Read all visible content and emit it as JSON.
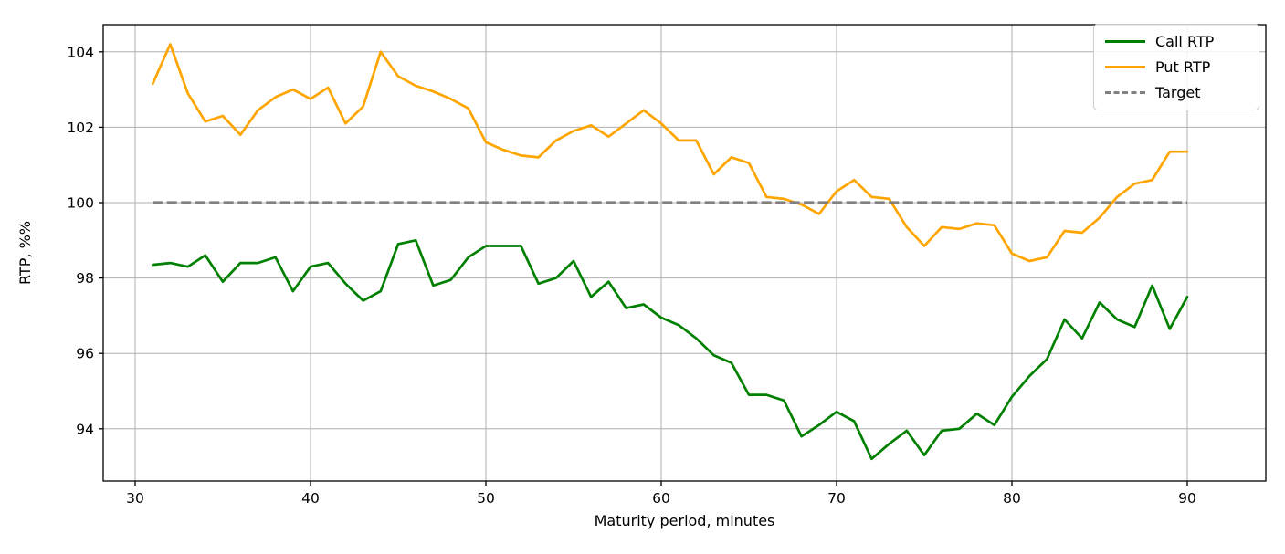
{
  "chart_data": {
    "type": "line",
    "title": "",
    "xlabel": "Maturity period, minutes",
    "ylabel": "RTP, %%",
    "x_ticks": [
      30,
      40,
      50,
      60,
      70,
      80,
      90
    ],
    "y_ticks": [
      94,
      96,
      98,
      100,
      102,
      104
    ],
    "xlim": [
      28.2,
      94.4
    ],
    "ylim": [
      92.6,
      104.75
    ],
    "grid": true,
    "legend_position": "upper right",
    "colors": {
      "call": "#008000",
      "put": "#ffa500",
      "target": "#808080",
      "grid": "#b0b0b0",
      "spine": "#000000",
      "background": "#ffffff"
    },
    "x": [
      31,
      32,
      33,
      34,
      35,
      36,
      37,
      38,
      39,
      40,
      41,
      42,
      43,
      44,
      45,
      46,
      47,
      48,
      49,
      50,
      51,
      52,
      53,
      54,
      55,
      56,
      57,
      58,
      59,
      60,
      61,
      62,
      63,
      64,
      65,
      66,
      67,
      68,
      69,
      70,
      71,
      72,
      73,
      74,
      75,
      76,
      77,
      78,
      79,
      80,
      81,
      82,
      83,
      84,
      85,
      86,
      87,
      88,
      89,
      90
    ],
    "series": [
      {
        "name": "Call RTP",
        "color": "#008000",
        "style": "solid",
        "type": "line",
        "values": [
          98.35,
          98.4,
          98.3,
          98.6,
          97.9,
          98.4,
          98.4,
          98.55,
          97.65,
          98.3,
          98.4,
          97.85,
          97.4,
          97.65,
          98.9,
          99.0,
          97.8,
          97.95,
          98.55,
          98.85,
          98.85,
          98.85,
          97.85,
          98.0,
          98.45,
          97.5,
          97.9,
          97.2,
          97.3,
          96.95,
          96.75,
          96.4,
          95.95,
          95.75,
          94.9,
          94.9,
          94.75,
          93.8,
          94.1,
          94.45,
          94.2,
          93.2,
          93.6,
          93.95,
          93.3,
          93.95,
          94.0,
          94.4,
          94.1,
          94.85,
          95.4,
          95.85,
          96.9,
          96.4,
          97.35,
          96.9,
          96.7,
          97.8,
          96.65,
          97.5
        ]
      },
      {
        "name": "Put RTP",
        "color": "#ffa500",
        "style": "solid",
        "type": "line",
        "values": [
          103.15,
          104.2,
          102.9,
          102.15,
          102.3,
          101.8,
          102.45,
          102.8,
          103.0,
          102.75,
          103.05,
          102.1,
          102.55,
          104.0,
          103.35,
          103.1,
          102.95,
          102.75,
          102.5,
          101.6,
          101.4,
          101.25,
          101.2,
          101.65,
          101.9,
          102.05,
          101.75,
          102.1,
          102.45,
          102.1,
          101.65,
          101.65,
          100.75,
          101.2,
          101.05,
          100.15,
          100.1,
          99.95,
          99.7,
          100.3,
          100.6,
          100.15,
          100.1,
          99.35,
          98.85,
          99.35,
          99.3,
          99.45,
          99.4,
          98.65,
          98.45,
          98.55,
          99.25,
          99.2,
          99.6,
          100.15,
          100.5,
          100.6,
          101.35,
          101.35
        ]
      },
      {
        "name": "Target",
        "color": "#808080",
        "style": "dashed",
        "type": "constant",
        "value": 100
      }
    ]
  }
}
